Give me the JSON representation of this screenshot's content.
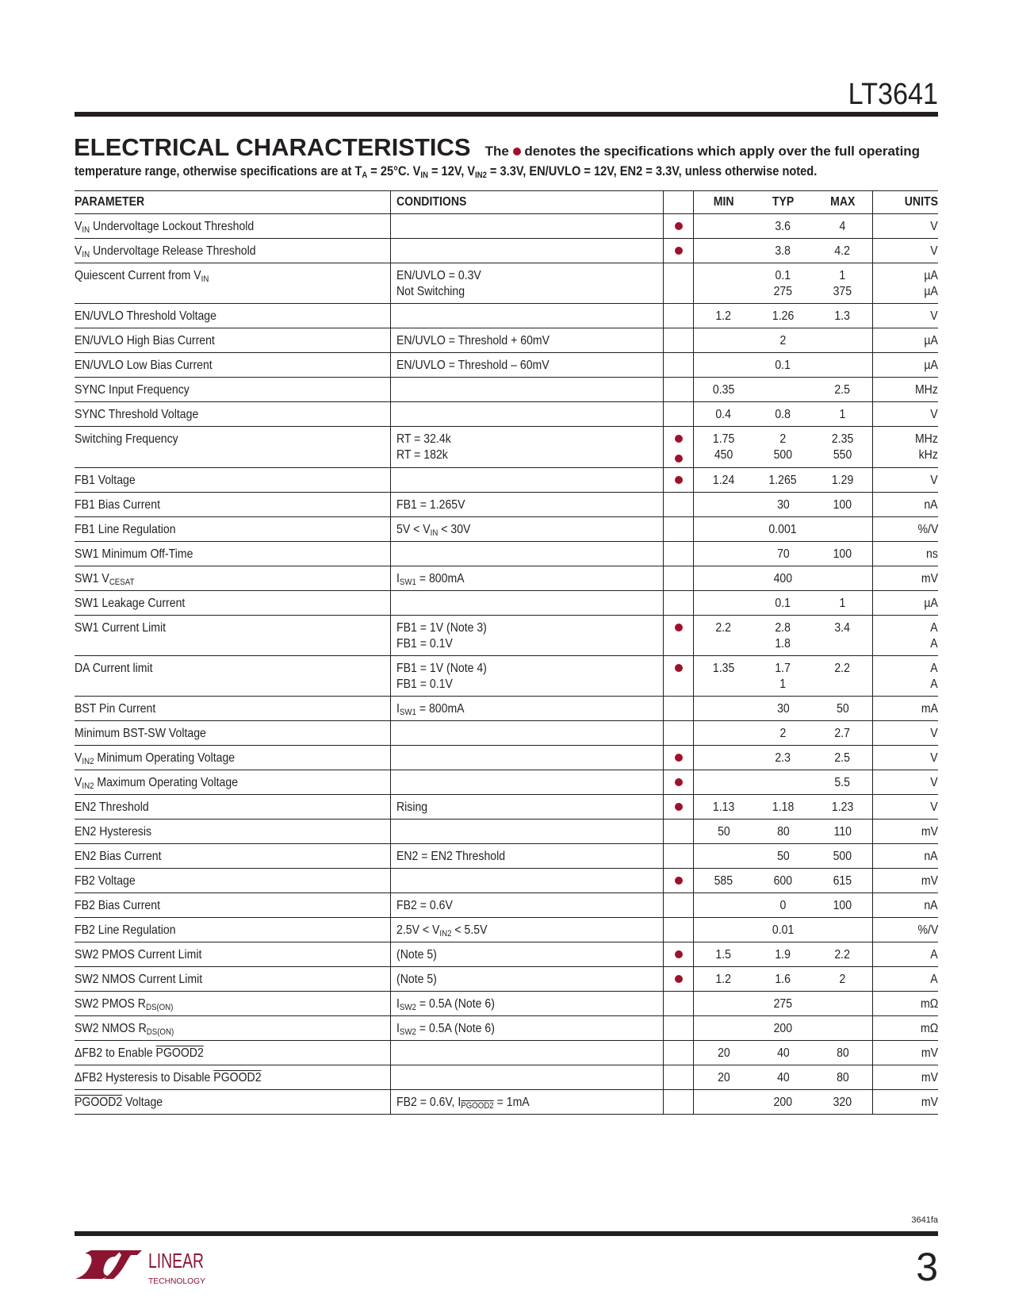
{
  "header": {
    "part_number": "LT3641"
  },
  "section": {
    "title": "ELECTRICAL CHARACTERISTICS",
    "intro_before_dot": "The",
    "intro_after_dot": "denotes the specifications which apply over the full operating",
    "intro_line2": [
      {
        "t": "temperature range, otherwise specifications are at T"
      },
      {
        "sub": "A"
      },
      {
        "t": " = 25°C. V"
      },
      {
        "sub": "IN"
      },
      {
        "t": " = 12V, V"
      },
      {
        "sub": "IN2"
      },
      {
        "t": " = 3.3V, EN/UVLO = 12V, EN2 = 3.3V, unless otherwise noted."
      }
    ]
  },
  "colors": {
    "accent_dot": "#a0102a",
    "text": "#231f20"
  },
  "table": {
    "headers": {
      "parameter": "PARAMETER",
      "conditions": "CONDITIONS",
      "min": "MIN",
      "typ": "TYP",
      "max": "MAX",
      "units": "UNITS"
    },
    "rows": [
      {
        "param": [
          {
            "t": "V"
          },
          {
            "sub": "IN"
          },
          {
            "t": " Undervoltage Lockout Threshold"
          }
        ],
        "cond": [],
        "dots": 1,
        "min": [],
        "typ": [
          "3.6"
        ],
        "max": [
          "4"
        ],
        "units": [
          "V"
        ]
      },
      {
        "param": [
          {
            "t": "V"
          },
          {
            "sub": "IN"
          },
          {
            "t": " Undervoltage Release Threshold"
          }
        ],
        "cond": [],
        "dots": 1,
        "min": [],
        "typ": [
          "3.8"
        ],
        "max": [
          "4.2"
        ],
        "units": [
          "V"
        ]
      },
      {
        "param": [
          {
            "t": "Quiescent Current from V"
          },
          {
            "sub": "IN"
          }
        ],
        "cond": [
          [
            {
              "t": "EN/UVLO = 0.3V"
            }
          ],
          [
            {
              "t": "Not Switching"
            }
          ]
        ],
        "dots": 0,
        "min": [],
        "typ": [
          "0.1",
          "275"
        ],
        "max": [
          "1",
          "375"
        ],
        "units": [
          "µA",
          "µA"
        ]
      },
      {
        "param": [
          {
            "t": "EN/UVLO Threshold Voltage"
          }
        ],
        "cond": [],
        "dots": 0,
        "min": [
          "1.2"
        ],
        "typ": [
          "1.26"
        ],
        "max": [
          "1.3"
        ],
        "units": [
          "V"
        ]
      },
      {
        "param": [
          {
            "t": "EN/UVLO High Bias Current"
          }
        ],
        "cond": [
          [
            {
              "t": "EN/UVLO = Threshold + 60mV"
            }
          ]
        ],
        "dots": 0,
        "min": [],
        "typ": [
          "2"
        ],
        "max": [],
        "units": [
          "µA"
        ]
      },
      {
        "param": [
          {
            "t": "EN/UVLO Low Bias Current"
          }
        ],
        "cond": [
          [
            {
              "t": "EN/UVLO = Threshold – 60mV"
            }
          ]
        ],
        "dots": 0,
        "min": [],
        "typ": [
          "0.1"
        ],
        "max": [],
        "units": [
          "µA"
        ]
      },
      {
        "param": [
          {
            "t": "SYNC Input Frequency"
          }
        ],
        "cond": [],
        "dots": 0,
        "min": [
          "0.35"
        ],
        "typ": [],
        "max": [
          "2.5"
        ],
        "units": [
          "MHz"
        ]
      },
      {
        "param": [
          {
            "t": "SYNC Threshold Voltage"
          }
        ],
        "cond": [],
        "dots": 0,
        "min": [
          "0.4"
        ],
        "typ": [
          "0.8"
        ],
        "max": [
          "1"
        ],
        "units": [
          "V"
        ]
      },
      {
        "param": [
          {
            "t": "Switching Frequency"
          }
        ],
        "cond": [
          [
            {
              "t": "RT = 32.4k"
            }
          ],
          [
            {
              "t": "RT = 182k"
            }
          ]
        ],
        "dots": 2,
        "min": [
          "1.75",
          "450"
        ],
        "typ": [
          "2",
          "500"
        ],
        "max": [
          "2.35",
          "550"
        ],
        "units": [
          "MHz",
          "kHz"
        ]
      },
      {
        "param": [
          {
            "t": "FB1 Voltage"
          }
        ],
        "cond": [],
        "dots": 1,
        "min": [
          "1.24"
        ],
        "typ": [
          "1.265"
        ],
        "max": [
          "1.29"
        ],
        "units": [
          "V"
        ]
      },
      {
        "param": [
          {
            "t": "FB1 Bias Current"
          }
        ],
        "cond": [
          [
            {
              "t": "FB1 = 1.265V"
            }
          ]
        ],
        "dots": 0,
        "min": [],
        "typ": [
          "30"
        ],
        "max": [
          "100"
        ],
        "units": [
          "nA"
        ]
      },
      {
        "param": [
          {
            "t": "FB1 Line Regulation"
          }
        ],
        "cond": [
          [
            {
              "t": "5V < V"
            },
            {
              "sub": "IN"
            },
            {
              "t": " < 30V"
            }
          ]
        ],
        "dots": 0,
        "min": [],
        "typ": [
          "0.001"
        ],
        "max": [],
        "units": [
          "%/V"
        ]
      },
      {
        "param": [
          {
            "t": "SW1 Minimum Off-Time"
          }
        ],
        "cond": [],
        "dots": 0,
        "min": [],
        "typ": [
          "70"
        ],
        "max": [
          "100"
        ],
        "units": [
          "ns"
        ]
      },
      {
        "param": [
          {
            "t": "SW1 V"
          },
          {
            "sub": "CESAT"
          }
        ],
        "cond": [
          [
            {
              "t": "I"
            },
            {
              "sub": "SW1"
            },
            {
              "t": " = 800mA"
            }
          ]
        ],
        "dots": 0,
        "min": [],
        "typ": [
          "400"
        ],
        "max": [],
        "units": [
          "mV"
        ]
      },
      {
        "param": [
          {
            "t": "SW1 Leakage Current"
          }
        ],
        "cond": [],
        "dots": 0,
        "min": [],
        "typ": [
          "0.1"
        ],
        "max": [
          "1"
        ],
        "units": [
          "µA"
        ]
      },
      {
        "param": [
          {
            "t": "SW1 Current Limit"
          }
        ],
        "cond": [
          [
            {
              "t": "FB1 = 1V (Note 3)"
            }
          ],
          [
            {
              "t": "FB1 = 0.1V"
            }
          ]
        ],
        "dots": 1,
        "min": [
          "2.2"
        ],
        "typ": [
          "2.8",
          "1.8"
        ],
        "max": [
          "3.4"
        ],
        "units": [
          "A",
          "A"
        ]
      },
      {
        "param": [
          {
            "t": "DA Current limit"
          }
        ],
        "cond": [
          [
            {
              "t": "FB1 = 1V (Note 4)"
            }
          ],
          [
            {
              "t": "FB1 = 0.1V"
            }
          ]
        ],
        "dots": 1,
        "min": [
          "1.35"
        ],
        "typ": [
          "1.7",
          "1"
        ],
        "max": [
          "2.2"
        ],
        "units": [
          "A",
          "A"
        ]
      },
      {
        "param": [
          {
            "t": "BST Pin Current"
          }
        ],
        "cond": [
          [
            {
              "t": "I"
            },
            {
              "sub": "SW1"
            },
            {
              "t": " = 800mA"
            }
          ]
        ],
        "dots": 0,
        "min": [],
        "typ": [
          "30"
        ],
        "max": [
          "50"
        ],
        "units": [
          "mA"
        ]
      },
      {
        "param": [
          {
            "t": "Minimum BST-SW Voltage"
          }
        ],
        "cond": [],
        "dots": 0,
        "min": [],
        "typ": [
          "2"
        ],
        "max": [
          "2.7"
        ],
        "units": [
          "V"
        ]
      },
      {
        "param": [
          {
            "t": "V"
          },
          {
            "sub": "IN2"
          },
          {
            "t": " Minimum Operating Voltage"
          }
        ],
        "cond": [],
        "dots": 1,
        "min": [],
        "typ": [
          "2.3"
        ],
        "max": [
          "2.5"
        ],
        "units": [
          "V"
        ]
      },
      {
        "param": [
          {
            "t": "V"
          },
          {
            "sub": "IN2"
          },
          {
            "t": " Maximum Operating Voltage"
          }
        ],
        "cond": [],
        "dots": 1,
        "min": [],
        "typ": [],
        "max": [
          "5.5"
        ],
        "units": [
          "V"
        ]
      },
      {
        "param": [
          {
            "t": "EN2 Threshold"
          }
        ],
        "cond": [
          [
            {
              "t": "Rising"
            }
          ]
        ],
        "dots": 1,
        "min": [
          "1.13"
        ],
        "typ": [
          "1.18"
        ],
        "max": [
          "1.23"
        ],
        "units": [
          "V"
        ]
      },
      {
        "param": [
          {
            "t": "EN2 Hysteresis"
          }
        ],
        "cond": [],
        "dots": 0,
        "min": [
          "50"
        ],
        "typ": [
          "80"
        ],
        "max": [
          "110"
        ],
        "units": [
          "mV"
        ]
      },
      {
        "param": [
          {
            "t": "EN2 Bias Current"
          }
        ],
        "cond": [
          [
            {
              "t": "EN2 = EN2 Threshold"
            }
          ]
        ],
        "dots": 0,
        "min": [],
        "typ": [
          "50"
        ],
        "max": [
          "500"
        ],
        "units": [
          "nA"
        ]
      },
      {
        "param": [
          {
            "t": "FB2 Voltage"
          }
        ],
        "cond": [],
        "dots": 1,
        "min": [
          "585"
        ],
        "typ": [
          "600"
        ],
        "max": [
          "615"
        ],
        "units": [
          "mV"
        ]
      },
      {
        "param": [
          {
            "t": "FB2 Bias Current"
          }
        ],
        "cond": [
          [
            {
              "t": "FB2 = 0.6V"
            }
          ]
        ],
        "dots": 0,
        "min": [],
        "typ": [
          "0"
        ],
        "max": [
          "100"
        ],
        "units": [
          "nA"
        ]
      },
      {
        "param": [
          {
            "t": "FB2 Line Regulation"
          }
        ],
        "cond": [
          [
            {
              "t": "2.5V < V"
            },
            {
              "sub": "IN2"
            },
            {
              "t": " < 5.5V"
            }
          ]
        ],
        "dots": 0,
        "min": [],
        "typ": [
          "0.01"
        ],
        "max": [],
        "units": [
          "%/V"
        ]
      },
      {
        "param": [
          {
            "t": "SW2 PMOS Current Limit"
          }
        ],
        "cond": [
          [
            {
              "t": "(Note 5)"
            }
          ]
        ],
        "dots": 1,
        "min": [
          "1.5"
        ],
        "typ": [
          "1.9"
        ],
        "max": [
          "2.2"
        ],
        "units": [
          "A"
        ]
      },
      {
        "param": [
          {
            "t": "SW2 NMOS Current Limit"
          }
        ],
        "cond": [
          [
            {
              "t": "(Note 5)"
            }
          ]
        ],
        "dots": 1,
        "min": [
          "1.2"
        ],
        "typ": [
          "1.6"
        ],
        "max": [
          "2"
        ],
        "units": [
          "A"
        ]
      },
      {
        "param": [
          {
            "t": "SW2 PMOS R"
          },
          {
            "sub": "DS(ON)"
          }
        ],
        "cond": [
          [
            {
              "t": "I"
            },
            {
              "sub": "SW2"
            },
            {
              "t": " = 0.5A (Note 6)"
            }
          ]
        ],
        "dots": 0,
        "min": [],
        "typ": [
          "275"
        ],
        "max": [],
        "units": [
          "mΩ"
        ]
      },
      {
        "param": [
          {
            "t": "SW2 NMOS R"
          },
          {
            "sub": "DS(ON)"
          }
        ],
        "cond": [
          [
            {
              "t": "I"
            },
            {
              "sub": "SW2"
            },
            {
              "t": " = 0.5A (Note 6)"
            }
          ]
        ],
        "dots": 0,
        "min": [],
        "typ": [
          "200"
        ],
        "max": [],
        "units": [
          "mΩ"
        ]
      },
      {
        "param": [
          {
            "t": "ΔFB2 to Enable "
          },
          {
            "over": "PGOOD2"
          }
        ],
        "cond": [],
        "dots": 0,
        "min": [
          "20"
        ],
        "typ": [
          "40"
        ],
        "max": [
          "80"
        ],
        "units": [
          "mV"
        ]
      },
      {
        "param": [
          {
            "t": "ΔFB2 Hysteresis to Disable "
          },
          {
            "over": "PGOOD2"
          }
        ],
        "cond": [],
        "dots": 0,
        "min": [
          "20"
        ],
        "typ": [
          "40"
        ],
        "max": [
          "80"
        ],
        "units": [
          "mV"
        ]
      },
      {
        "param": [
          {
            "over": "PGOOD2"
          },
          {
            "t": " Voltage"
          }
        ],
        "cond": [
          [
            {
              "t": "FB2 = 0.6V, I"
            },
            {
              "subover": "PGOOD2"
            },
            {
              "t": " = 1mA"
            }
          ]
        ],
        "dots": 0,
        "min": [],
        "typ": [
          "200"
        ],
        "max": [
          "320"
        ],
        "units": [
          "mV"
        ]
      }
    ]
  },
  "footer": {
    "doc_number": "3641fa",
    "page_number": "3",
    "logo_text_main": "LINEAR",
    "logo_text_sub": "TECHNOLOGY"
  }
}
